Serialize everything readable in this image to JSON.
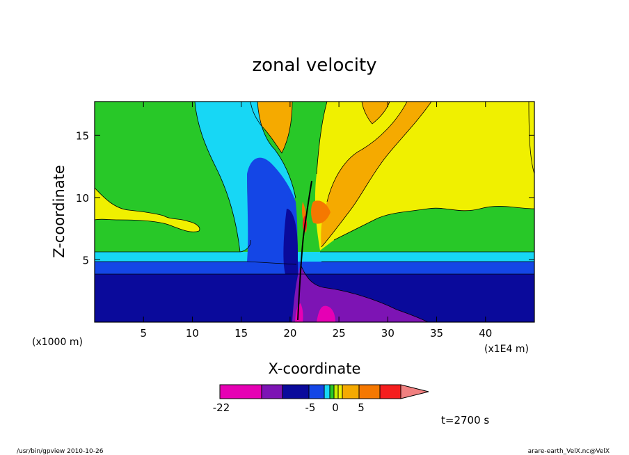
{
  "chart_data": {
    "type": "heatmap",
    "title": "zonal velocity",
    "xlabel": "X-coordinate",
    "ylabel": "Z-coordinate",
    "x_unit_left": "(x1000 m)",
    "x_unit_right": "(x1E4 m)",
    "xlim": [
      0,
      45
    ],
    "ylim": [
      0,
      17.7
    ],
    "x_ticks": [
      5,
      10,
      15,
      20,
      25,
      30,
      35,
      40
    ],
    "y_ticks": [
      5,
      10,
      15
    ],
    "colorbar": {
      "tick_values": [
        -22,
        -5,
        0,
        5
      ],
      "tick_labels": [
        "-22",
        "-5",
        "0",
        "5"
      ],
      "colors": [
        "#e600b4",
        "#7d14b4",
        "#0a0a9b",
        "#1446e6",
        "#17d7f5",
        "#28c828",
        "#c8f000",
        "#f0f000",
        "#f5aa00",
        "#f57800",
        "#f51e1e",
        "#f08080"
      ]
    },
    "time_label": "t=2700 s",
    "bands_described": [
      {
        "range": "z 0-4 near-surface",
        "level": "blue, dark-blue"
      },
      {
        "range": "x 21-27, z 0-3",
        "level": "purple / magenta (min -22)"
      },
      {
        "range": "z 6-17, x>24",
        "level": "yellow / orange"
      },
      {
        "range": "z 6-12, x<15",
        "level": "green with yellow tongue"
      }
    ]
  },
  "footer": {
    "left": "/usr/bin/gpview  2010-10-26",
    "right": "arare-earth_VelX.nc@VelX"
  }
}
